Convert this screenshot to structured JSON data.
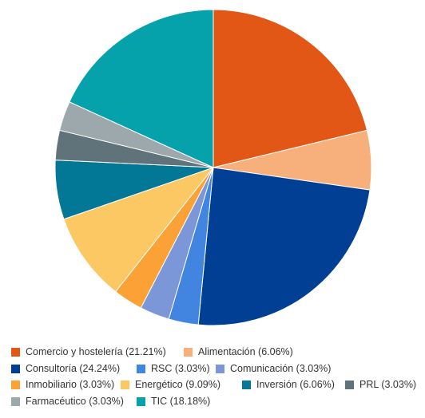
{
  "chart_data": {
    "type": "pie",
    "title": "",
    "legend_position": "bottom",
    "slices": [
      {
        "label": "Comercio y hostelería",
        "value": 21.21,
        "color": "#E25616"
      },
      {
        "label": "Alimentación",
        "value": 6.06,
        "color": "#F7B07C"
      },
      {
        "label": "Consultoría",
        "value": 24.24,
        "color": "#013F95"
      },
      {
        "label": "RSC",
        "value": 3.03,
        "color": "#4285E0"
      },
      {
        "label": "Comunicación",
        "value": 3.03,
        "color": "#7C97D7"
      },
      {
        "label": "Inmobiliario",
        "value": 3.03,
        "color": "#FCA135"
      },
      {
        "label": "Energético",
        "value": 9.09,
        "color": "#FCC864"
      },
      {
        "label": "Inversión",
        "value": 6.06,
        "color": "#037896"
      },
      {
        "label": "PRL",
        "value": 3.03,
        "color": "#61737A"
      },
      {
        "label": "Farmacéutico",
        "value": 3.03,
        "color": "#9DA8AC"
      },
      {
        "label": "TIC",
        "value": 18.18,
        "color": "#06A2AB"
      }
    ]
  },
  "legend": {
    "items": [
      {
        "text": "Comercio y hostelería (21.21%)",
        "color": "#E25616"
      },
      {
        "text": "Alimentación (6.06%)",
        "color": "#F7B07C"
      },
      {
        "text": "Consultoría (24.24%)",
        "color": "#013F95"
      },
      {
        "text": "RSC (3.03%)",
        "color": "#4285E0"
      },
      {
        "text": "Comunicación (3.03%)",
        "color": "#7C97D7"
      },
      {
        "text": "Inmobiliario (3.03%)",
        "color": "#FCA135"
      },
      {
        "text": "Energético (9.09%)",
        "color": "#FCC864"
      },
      {
        "text": "Inversión (6.06%)",
        "color": "#037896"
      },
      {
        "text": "PRL (3.03%)",
        "color": "#61737A"
      },
      {
        "text": "Farmacéutico (3.03%)",
        "color": "#9DA8AC"
      },
      {
        "text": "TIC (18.18%)",
        "color": "#06A2AB"
      }
    ]
  }
}
